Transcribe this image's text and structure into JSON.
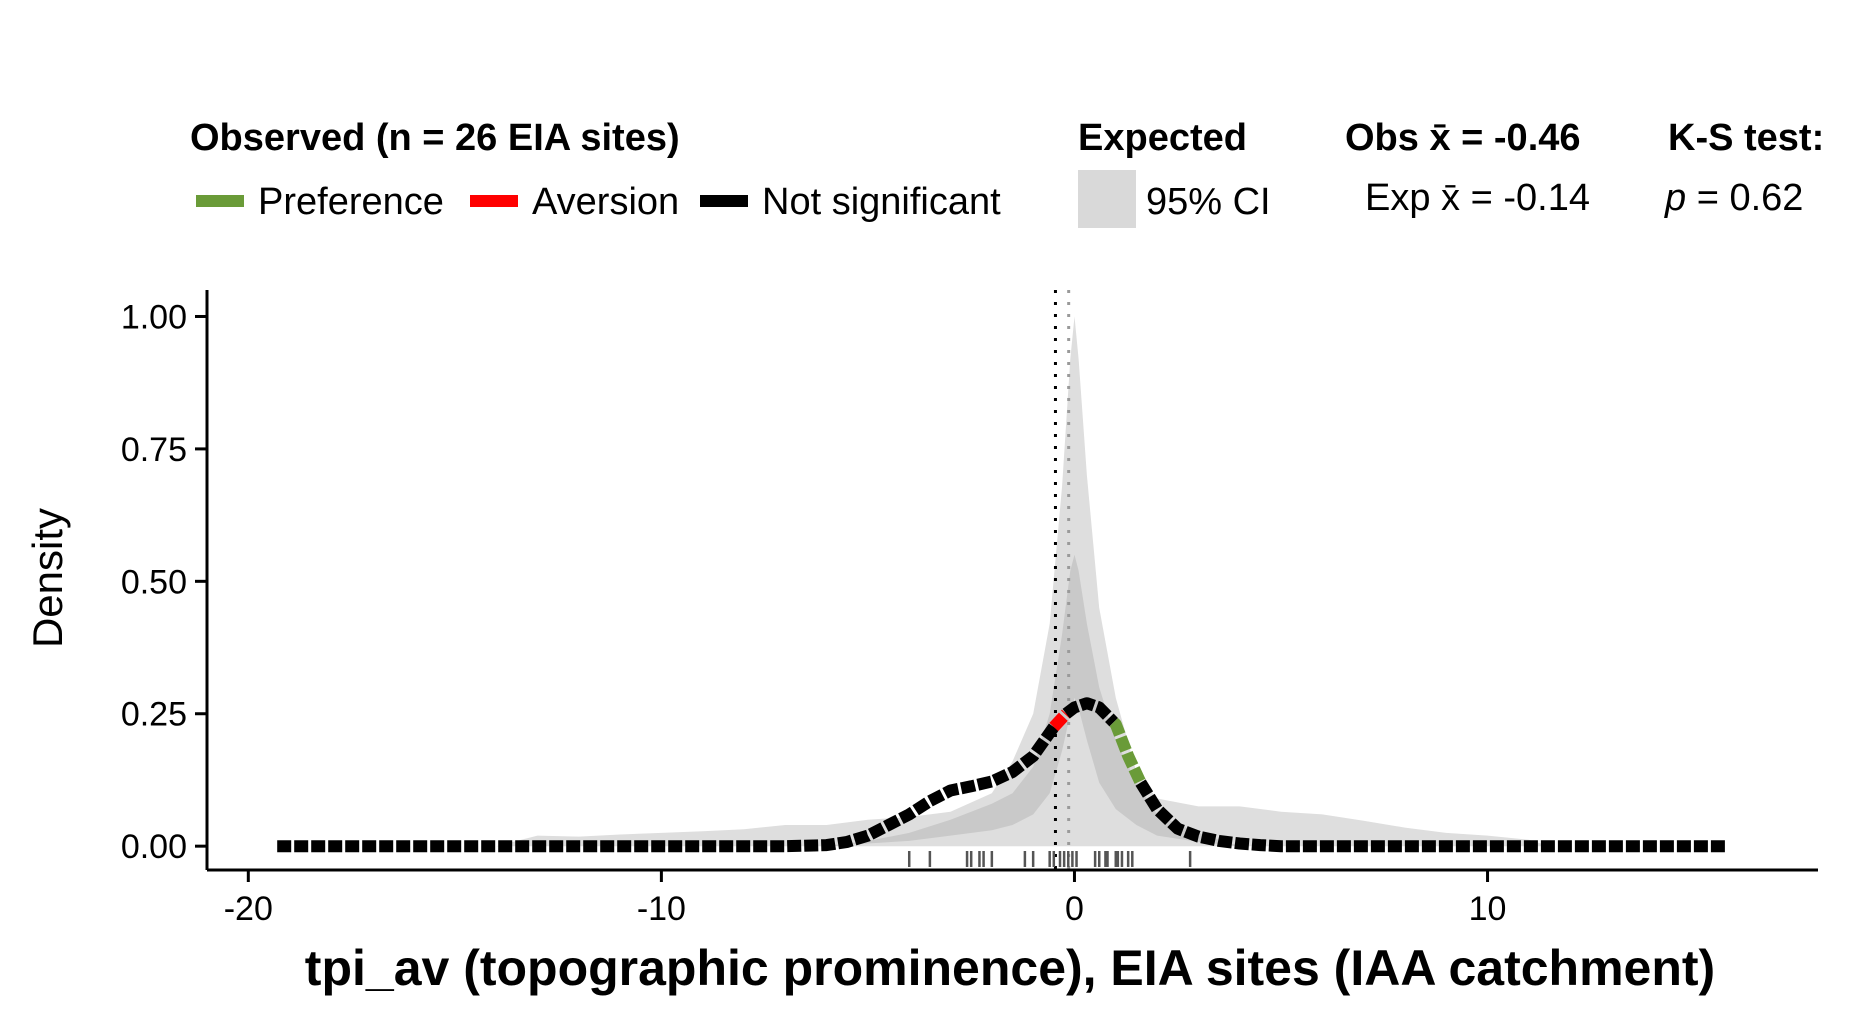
{
  "chart_data": {
    "type": "line",
    "xlabel": "tpi_av (topographic prominence), EIA sites (IAA catchment)",
    "ylabel": "Density",
    "xlim": [
      -21,
      18
    ],
    "ylim": [
      -0.045,
      1.05
    ],
    "x_ticks": [
      -20,
      -10,
      0,
      10
    ],
    "x_tick_labels": [
      "-20",
      "-10",
      "0",
      "10"
    ],
    "y_ticks": [
      0,
      0.25,
      0.5,
      0.75,
      1.0
    ],
    "y_tick_labels": [
      "0.00",
      "0.25",
      "0.50",
      "0.75",
      "1.00"
    ],
    "grid": false,
    "legend": {
      "placement": "top",
      "observed_title": "Observed (n = 26 EIA sites)",
      "items": [
        {
          "label": "Preference",
          "color": "#6a9b38"
        },
        {
          "label": "Aversion",
          "color": "#ff0000"
        },
        {
          "label": "Not significant",
          "color": "#000000"
        }
      ],
      "expected_title": "Expected",
      "ci_label": "95% CI",
      "ci_color": "#d9d9d9"
    },
    "stats": {
      "obs_label": "Obs x̄ = -0.46",
      "exp_label": "Exp x̄ = -0.14",
      "ks_title": "K-S test:",
      "ks_p_symbol": "p",
      "ks_p_value": "= 0.62"
    },
    "observed_mean": -0.46,
    "expected_mean": -0.14,
    "observed": {
      "x": [
        -19.3,
        -16,
        -12,
        -9,
        -7,
        -6,
        -5.5,
        -5,
        -4.5,
        -4,
        -3.5,
        -3,
        -2.5,
        -2,
        -1.5,
        -1,
        -0.5,
        -0.2,
        0,
        0.3,
        0.6,
        1,
        1.3,
        1.6,
        2,
        2.5,
        3,
        3.5,
        4,
        4.5,
        5,
        6,
        8,
        12,
        15.8
      ],
      "y": [
        0.0,
        0.0,
        0.0,
        0.0,
        0.0,
        0.002,
        0.008,
        0.02,
        0.04,
        0.06,
        0.085,
        0.105,
        0.113,
        0.122,
        0.14,
        0.17,
        0.225,
        0.25,
        0.262,
        0.27,
        0.262,
        0.23,
        0.17,
        0.12,
        0.07,
        0.033,
        0.018,
        0.01,
        0.005,
        0.002,
        0.0,
        0.0,
        0.0,
        0.0,
        0.0
      ],
      "significance_segments": [
        {
          "from": -19.3,
          "to": -0.5,
          "status": "Not significant"
        },
        {
          "from": -0.5,
          "to": -0.2,
          "status": "Aversion"
        },
        {
          "from": -0.2,
          "to": 0.95,
          "status": "Not significant"
        },
        {
          "from": 0.95,
          "to": 1.6,
          "status": "Preference"
        },
        {
          "from": 1.6,
          "to": 15.8,
          "status": "Not significant"
        }
      ]
    },
    "expected_ci_outer": {
      "x": [
        -14,
        -13,
        -12,
        -11,
        -10,
        -9,
        -8,
        -7,
        -6,
        -5,
        -4,
        -3,
        -2,
        -1.5,
        -1,
        -0.6,
        -0.3,
        -0.1,
        0,
        0.1,
        0.3,
        0.6,
        1,
        1.5,
        2,
        3,
        4,
        5,
        6,
        7,
        8,
        9,
        10,
        11,
        11.5
      ],
      "upper": [
        0.0,
        0.02,
        0.018,
        0.022,
        0.025,
        0.028,
        0.032,
        0.04,
        0.04,
        0.05,
        0.055,
        0.065,
        0.1,
        0.16,
        0.25,
        0.42,
        0.68,
        0.92,
        1.0,
        0.92,
        0.7,
        0.45,
        0.28,
        0.14,
        0.09,
        0.075,
        0.075,
        0.065,
        0.06,
        0.048,
        0.035,
        0.025,
        0.02,
        0.012,
        0.0
      ],
      "lower": [
        0.0,
        0.0,
        0.0,
        0.0,
        0.0,
        0.0,
        0.0,
        0.0,
        0.0,
        0.0,
        0.0,
        0.0,
        0.0,
        0.0,
        0.0,
        0.0,
        0.0,
        0.0,
        0.0,
        0.0,
        0.0,
        0.0,
        0.0,
        0.0,
        0.0,
        0.0,
        0.0,
        0.0,
        0.0,
        0.0,
        0.0,
        0.0,
        0.0,
        0.0,
        0.0
      ]
    },
    "expected_ci_inner": {
      "x": [
        -6,
        -5,
        -4,
        -3,
        -2,
        -1.5,
        -1,
        -0.6,
        -0.3,
        -0.1,
        0,
        0.1,
        0.3,
        0.6,
        1,
        1.5,
        2,
        3,
        4
      ],
      "upper": [
        0.0,
        0.01,
        0.025,
        0.05,
        0.08,
        0.1,
        0.15,
        0.25,
        0.4,
        0.52,
        0.55,
        0.52,
        0.42,
        0.3,
        0.2,
        0.12,
        0.06,
        0.025,
        0.0
      ],
      "lower": [
        0.0,
        0.005,
        0.01,
        0.02,
        0.03,
        0.04,
        0.06,
        0.1,
        0.18,
        0.25,
        0.28,
        0.26,
        0.2,
        0.12,
        0.07,
        0.04,
        0.02,
        0.008,
        0.0
      ]
    },
    "rug_x": [
      -4.0,
      -3.5,
      -2.6,
      -2.5,
      -2.3,
      -2.2,
      -2.0,
      -1.2,
      -1.0,
      -0.6,
      -0.5,
      -0.35,
      -0.25,
      -0.15,
      -0.05,
      0.05,
      0.5,
      0.6,
      0.75,
      0.8,
      1.0,
      1.05,
      1.15,
      1.3,
      1.4,
      2.8
    ]
  }
}
